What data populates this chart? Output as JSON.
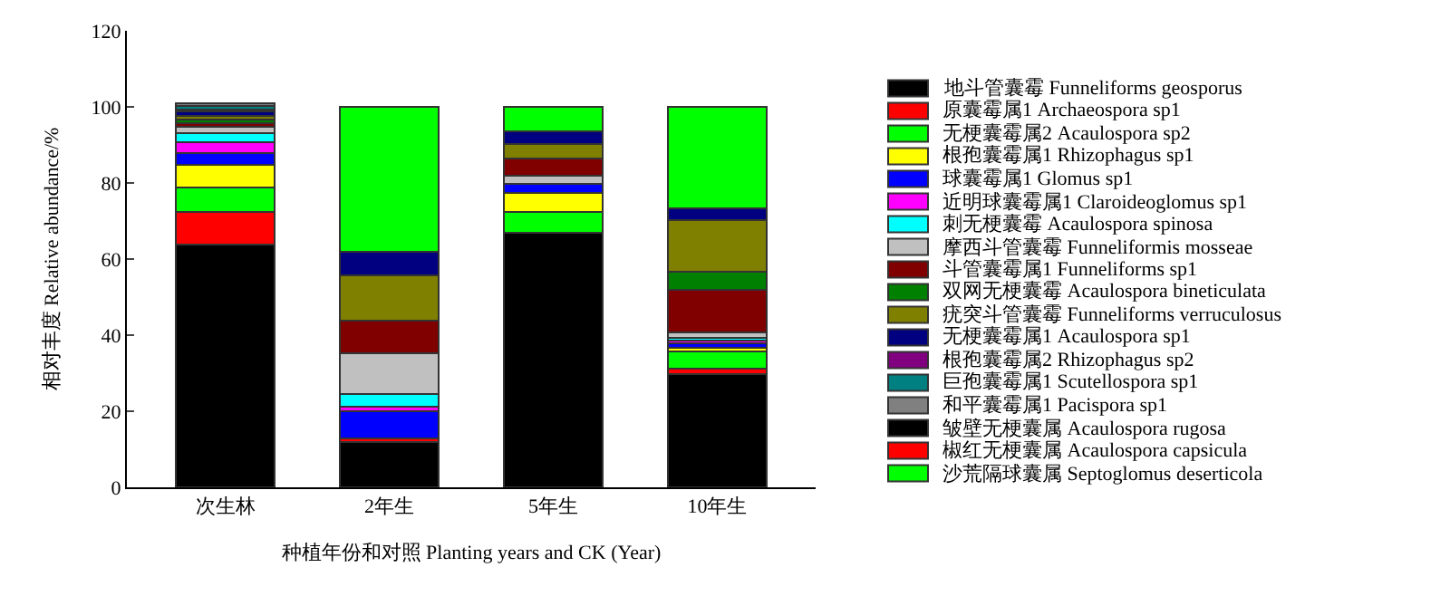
{
  "chart_data": {
    "type": "bar",
    "stacked": true,
    "categories": [
      "次生林",
      "2年生",
      "5年生",
      "10年生"
    ],
    "xlabel": "种植年份和对照 Planting years and CK (Year)",
    "ylabel": "相对丰度 Relative abundance/%",
    "ylim": [
      0,
      120
    ],
    "yticks": [
      0,
      20,
      40,
      60,
      80,
      100,
      120
    ],
    "legend": "right",
    "series": [
      {
        "name": "地斗管囊霉 Funneliforms geosporus",
        "color": "#000000",
        "values": [
          63.7,
          11.9,
          66.9,
          29.8
        ]
      },
      {
        "name": "原囊霉属1 Archaeospora sp1",
        "color": "#ff0000",
        "values": [
          8.6,
          0.9,
          0,
          1.3
        ]
      },
      {
        "name": "无梗囊霉属2 Acaulospora sp2",
        "color": "#00ff00",
        "values": [
          6.6,
          0,
          5.4,
          4.5
        ]
      },
      {
        "name": "根孢囊霉属1 Rhizophagus sp1",
        "color": "#ffff00",
        "values": [
          5.8,
          0,
          5.0,
          1.1
        ]
      },
      {
        "name": "球囊霉属1 Glomus sp1",
        "color": "#0000ff",
        "values": [
          3.1,
          7.2,
          2.5,
          1.1
        ]
      },
      {
        "name": "近明球囊霉属1 Claroideoglomus sp1",
        "color": "#ff00ff",
        "values": [
          2.8,
          1.1,
          0,
          0.8
        ]
      },
      {
        "name": "刺无梗囊霉 Acaulospora spinosa",
        "color": "#00ffff",
        "values": [
          2.5,
          3.4,
          0,
          0.8
        ]
      },
      {
        "name": "摩西斗管囊霉 Funneliformis mosseae",
        "color": "#c0c0c0",
        "values": [
          1.6,
          10.7,
          2.2,
          1.4
        ]
      },
      {
        "name": "斗管囊霉属1 Funneliforms sp1",
        "color": "#800000",
        "values": [
          1.0,
          8.7,
          4.4,
          11.2
        ]
      },
      {
        "name": "双网无梗囊霉 Acaulospora bineticulata",
        "color": "#008000",
        "values": [
          1.0,
          0,
          0,
          4.6
        ]
      },
      {
        "name": "疣突斗管囊霉 Funneliforms verruculosus",
        "color": "#808000",
        "values": [
          1.0,
          11.9,
          3.9,
          13.7
        ]
      },
      {
        "name": "无梗囊霉属1 Acaulospora sp1",
        "color": "#000080",
        "values": [
          1.0,
          6.2,
          3.3,
          3.0
        ]
      },
      {
        "name": "根孢囊霉属2 Rhizophagus sp2",
        "color": "#800080",
        "values": [
          0.7,
          0,
          0,
          0
        ]
      },
      {
        "name": "巨孢囊霉属1 Scutellospora sp1",
        "color": "#008080",
        "values": [
          0.8,
          0,
          0,
          0
        ]
      },
      {
        "name": "和平囊霉属1 Pacispora sp1",
        "color": "#808080",
        "values": [
          0.7,
          0,
          0,
          0
        ]
      },
      {
        "name": "皱壁无梗囊属 Acaulospora rugosa",
        "color": "#000000",
        "values": [
          0,
          0,
          0,
          0
        ]
      },
      {
        "name": "椒红无梗囊属 Acaulospora capsicula",
        "color": "#ff0000",
        "values": [
          0,
          0,
          0,
          0
        ]
      },
      {
        "name": "沙荒隔球囊属 Septoglomus deserticola",
        "color": "#00ff00",
        "values": [
          0,
          38.0,
          6.4,
          26.7
        ]
      }
    ]
  }
}
